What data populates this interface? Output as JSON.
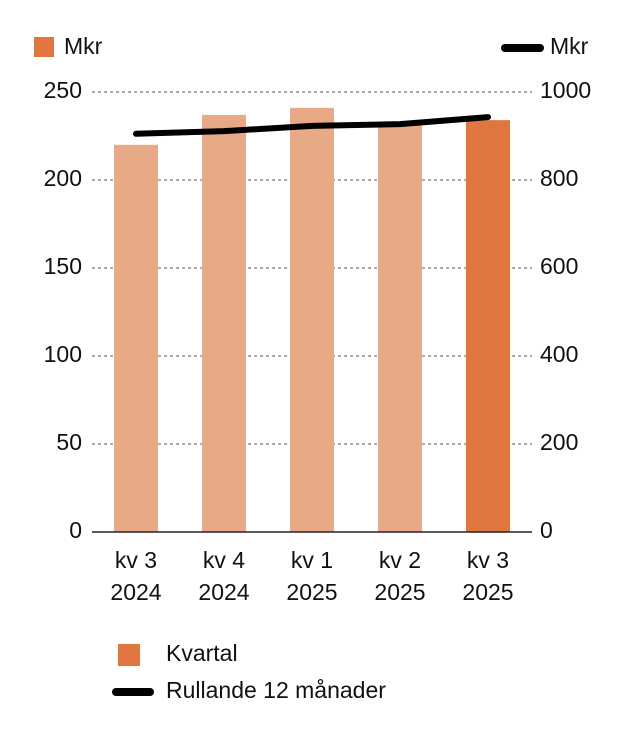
{
  "chart_data": {
    "type": "bar",
    "y_unit": "Mkr",
    "y2_unit": "Mkr",
    "categories": [
      [
        "kv 3",
        "2024"
      ],
      [
        "kv 4",
        "2024"
      ],
      [
        "kv 1",
        "2025"
      ],
      [
        "kv 2",
        "2025"
      ],
      [
        "kv 3",
        "2025"
      ]
    ],
    "series": [
      {
        "name": "Kvartal",
        "type": "bar",
        "color": "#e07540",
        "colors": [
          "#e8a987",
          "#e8a987",
          "#e8a987",
          "#e8a987",
          "#e07540"
        ],
        "values": [
          220,
          237,
          241,
          232,
          234
        ]
      },
      {
        "name": "Rullande 12 månader",
        "type": "line",
        "axis": "y2",
        "color": "#000000",
        "values": [
          905,
          911,
          923,
          927,
          943
        ]
      }
    ],
    "ylim": [
      0,
      250
    ],
    "yticks": [
      0,
      50,
      100,
      150,
      200,
      250
    ],
    "y2lim": [
      0,
      1000
    ],
    "y2ticks": [
      0,
      200,
      400,
      600,
      800,
      1000
    ],
    "grid": true
  }
}
